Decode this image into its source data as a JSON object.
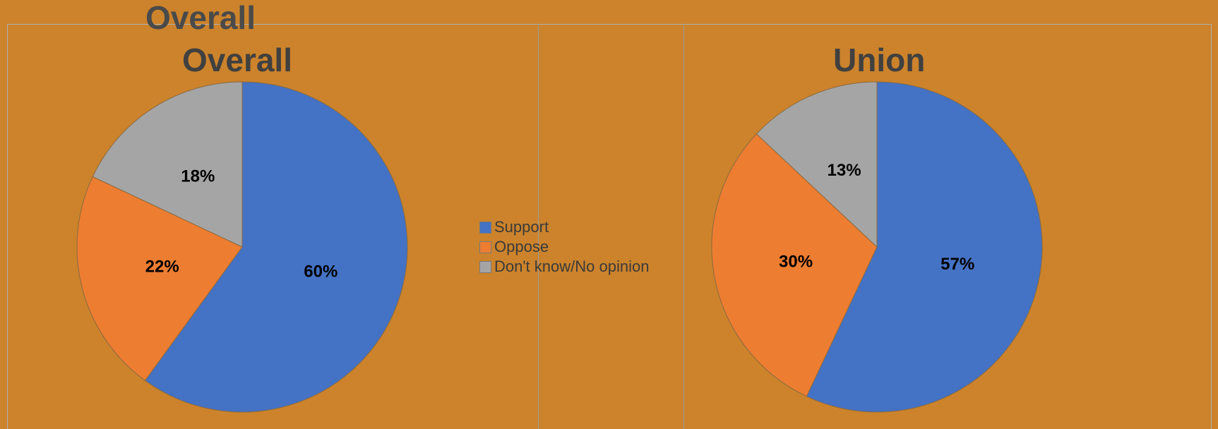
{
  "ghost_title": "Overall",
  "legend": [
    {
      "label": "Support",
      "color": "#4472c4"
    },
    {
      "label": "Oppose",
      "color": "#ed7d31"
    },
    {
      "label": "Don't know/No opinion",
      "color": "#a5a5a5"
    }
  ],
  "chart_data": [
    {
      "type": "pie",
      "title": "Overall",
      "categories": [
        "Support",
        "Oppose",
        "Don't know/No opinion"
      ],
      "values": [
        60,
        22,
        18
      ],
      "labels": [
        "60%",
        "22%",
        "18%"
      ],
      "colors": [
        "#4472c4",
        "#ed7d31",
        "#a5a5a5"
      ],
      "legend": "right"
    },
    {
      "type": "pie",
      "title": "Union",
      "categories": [
        "Support",
        "Oppose",
        "Don't know/No opinion"
      ],
      "values": [
        57,
        30,
        13
      ],
      "labels": [
        "57%",
        "30%",
        "13%"
      ],
      "colors": [
        "#4472c4",
        "#ed7d31",
        "#a5a5a5"
      ],
      "legend": "right"
    }
  ]
}
